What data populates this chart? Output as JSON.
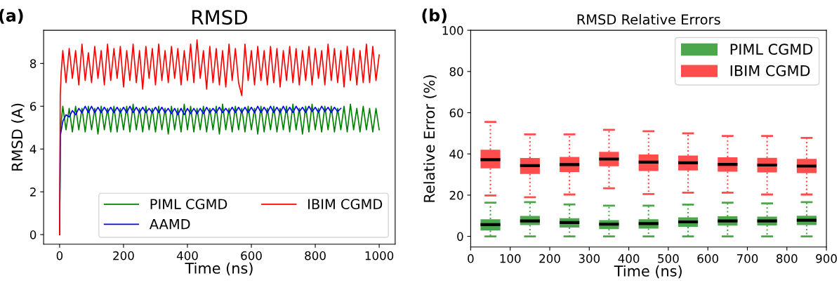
{
  "chart_data": [
    {
      "type": "line",
      "title": "RMSD",
      "xlabel": "Time (ns)",
      "ylabel": "RMSD (A)",
      "annotations": [
        "(a)"
      ],
      "xlim": [
        -50,
        1050
      ],
      "xticks": [
        0,
        200,
        400,
        600,
        800,
        1000
      ],
      "ylim": [
        -0.45,
        9.55
      ],
      "yticks": [
        0,
        2,
        4,
        6,
        8
      ],
      "legend": "lower right",
      "series": [
        {
          "name": "PIML CGMD",
          "color": "#008000",
          "x": [
            0,
            3,
            10,
            20,
            30,
            40,
            50,
            60,
            70,
            80,
            90,
            100,
            110,
            120,
            130,
            140,
            150,
            160,
            170,
            180,
            190,
            200,
            210,
            220,
            230,
            240,
            250,
            260,
            270,
            280,
            290,
            300,
            310,
            320,
            330,
            340,
            350,
            360,
            370,
            380,
            390,
            400,
            410,
            420,
            430,
            440,
            450,
            460,
            470,
            480,
            490,
            500,
            510,
            520,
            530,
            540,
            550,
            560,
            570,
            580,
            590,
            600,
            610,
            620,
            630,
            640,
            650,
            660,
            670,
            680,
            690,
            700,
            710,
            720,
            730,
            740,
            750,
            760,
            770,
            780,
            790,
            800,
            810,
            820,
            830,
            840,
            850,
            860,
            870,
            880,
            890,
            900,
            910,
            920,
            930,
            940,
            950,
            960,
            970,
            980,
            990,
            1000
          ],
          "values": [
            0,
            5.0,
            6.0,
            4.9,
            5.9,
            4.8,
            6.0,
            4.9,
            5.9,
            4.8,
            6.0,
            4.9,
            5.9,
            4.7,
            6.0,
            4.9,
            5.9,
            4.8,
            6.0,
            4.8,
            5.9,
            4.9,
            6.0,
            4.8,
            6.1,
            4.9,
            5.9,
            4.8,
            6.0,
            4.9,
            5.9,
            4.8,
            6.0,
            4.9,
            5.9,
            4.7,
            6.0,
            4.9,
            5.9,
            4.8,
            6.1,
            4.9,
            6.0,
            4.8,
            5.9,
            4.9,
            6.0,
            4.8,
            5.9,
            4.9,
            6.0,
            4.7,
            6.1,
            4.9,
            5.9,
            4.8,
            6.0,
            4.9,
            5.9,
            4.8,
            6.0,
            4.9,
            5.9,
            4.7,
            6.0,
            4.8,
            5.9,
            4.9,
            6.0,
            4.8,
            5.9,
            4.9,
            6.0,
            4.8,
            6.1,
            4.9,
            5.9,
            4.7,
            6.0,
            4.8,
            6.1,
            4.9,
            5.9,
            4.8,
            6.0,
            4.9,
            6.0,
            4.8,
            5.9,
            4.9,
            6.0,
            4.8,
            6.1,
            4.9,
            5.9,
            4.8,
            6.0,
            4.9,
            5.9,
            4.8,
            5.9,
            4.9
          ]
        },
        {
          "name": "AAMD",
          "color": "#0000ff",
          "x": [
            0,
            2,
            10,
            20,
            30,
            40,
            50,
            60,
            70,
            80,
            90,
            100,
            110,
            120,
            130,
            140,
            150,
            160,
            170,
            180,
            190,
            200,
            210,
            220,
            230,
            240,
            250,
            260,
            270,
            280,
            290,
            300,
            310,
            320,
            330,
            340,
            350,
            360,
            370,
            380,
            390,
            400,
            410,
            420,
            430,
            440,
            450,
            460,
            470,
            480,
            490,
            500,
            510,
            520,
            530,
            540,
            550,
            560,
            570,
            580,
            590,
            600,
            610,
            620,
            630,
            640,
            650,
            660,
            670,
            680,
            690,
            700,
            710,
            720,
            730,
            740,
            750,
            760,
            770,
            780,
            790,
            800,
            810,
            820,
            830,
            840,
            850,
            860,
            870,
            880
          ],
          "values": [
            0,
            4.6,
            5.3,
            5.6,
            5.5,
            5.8,
            5.6,
            5.9,
            5.7,
            6.0,
            5.7,
            6.0,
            5.7,
            5.95,
            5.7,
            5.95,
            5.7,
            5.95,
            5.7,
            5.95,
            5.7,
            5.95,
            5.7,
            6.0,
            5.7,
            5.95,
            5.7,
            5.95,
            5.7,
            5.9,
            5.7,
            5.95,
            5.7,
            5.95,
            5.7,
            5.9,
            5.65,
            5.9,
            5.6,
            5.9,
            5.6,
            5.9,
            5.65,
            5.9,
            5.65,
            5.9,
            5.65,
            5.95,
            5.7,
            5.9,
            5.7,
            5.95,
            5.7,
            5.9,
            5.7,
            5.95,
            5.7,
            5.95,
            5.7,
            5.95,
            5.7,
            5.95,
            5.7,
            6.0,
            5.7,
            5.95,
            5.7,
            6.0,
            5.7,
            5.95,
            5.7,
            6.0,
            5.7,
            5.95,
            5.7,
            6.0,
            5.75,
            5.95,
            5.7,
            6.0,
            5.75,
            5.95,
            5.7,
            6.0,
            5.75,
            5.95,
            5.7,
            5.95,
            5.75,
            5.9
          ]
        },
        {
          "name": "IBIM CGMD",
          "color": "#ff0000",
          "x": [
            0,
            2,
            5,
            10,
            20,
            30,
            40,
            50,
            60,
            70,
            80,
            90,
            100,
            110,
            120,
            130,
            140,
            150,
            160,
            170,
            180,
            190,
            200,
            210,
            220,
            230,
            240,
            250,
            260,
            270,
            280,
            290,
            300,
            310,
            320,
            330,
            340,
            350,
            360,
            370,
            380,
            390,
            400,
            410,
            420,
            430,
            440,
            450,
            460,
            470,
            480,
            490,
            500,
            510,
            520,
            530,
            540,
            550,
            560,
            570,
            580,
            590,
            600,
            610,
            620,
            630,
            640,
            650,
            660,
            670,
            680,
            690,
            700,
            710,
            720,
            730,
            740,
            750,
            760,
            770,
            780,
            790,
            800,
            810,
            820,
            830,
            840,
            850,
            860,
            870,
            880,
            890,
            900,
            910,
            920,
            930,
            940,
            950,
            960,
            970,
            980,
            990,
            1000
          ],
          "values": [
            0,
            6.5,
            7.6,
            8.6,
            7.1,
            8.7,
            7.3,
            8.6,
            7.0,
            8.9,
            7.2,
            8.5,
            7.1,
            8.8,
            7.3,
            8.6,
            7.0,
            8.9,
            7.2,
            8.7,
            7.3,
            8.8,
            6.9,
            8.6,
            7.2,
            8.9,
            7.1,
            8.6,
            6.8,
            8.8,
            7.3,
            8.7,
            7.0,
            8.9,
            7.2,
            8.6,
            7.1,
            8.8,
            7.3,
            8.7,
            7.0,
            8.6,
            7.2,
            8.9,
            7.1,
            9.1,
            7.3,
            8.6,
            6.8,
            8.8,
            7.1,
            8.7,
            7.0,
            8.6,
            6.9,
            8.9,
            7.2,
            8.7,
            7.1,
            6.5,
            8.9,
            7.2,
            8.6,
            7.0,
            8.8,
            7.2,
            8.6,
            7.0,
            8.8,
            7.1,
            8.7,
            6.9,
            8.6,
            7.2,
            8.8,
            7.1,
            8.7,
            7.0,
            8.6,
            7.2,
            8.8,
            7.0,
            8.7,
            7.3,
            8.6,
            7.0,
            8.9,
            7.2,
            8.7,
            7.1,
            8.6,
            6.9,
            8.8,
            7.2,
            8.7,
            7.0,
            8.6,
            7.1,
            8.9,
            7.1,
            8.8,
            7.2,
            8.4
          ]
        }
      ]
    },
    {
      "type": "box",
      "title": "RMSD Relative Errors",
      "xlabel": "Time (ns)",
      "ylabel": "Relative Error (%)",
      "annotations": [
        "(b)"
      ],
      "x": [
        50,
        150,
        250,
        350,
        450,
        550,
        650,
        750,
        850
      ],
      "xlim": [
        0,
        900
      ],
      "xticks": [
        0,
        100,
        200,
        300,
        400,
        500,
        600,
        700,
        800,
        900
      ],
      "ylim": [
        -5.2,
        100
      ],
      "yticks": [
        0,
        20,
        40,
        60,
        80,
        100
      ],
      "legend": "top right",
      "line_style": "dotted",
      "series": [
        {
          "name": "PIML CGMD",
          "color": "#4ca64c",
          "boxes": [
            {
              "low": 0,
              "q1": 2.8,
              "median": 5.7,
              "q3": 8.3,
              "high": 16.3
            },
            {
              "low": 0,
              "q1": 5.5,
              "median": 7.5,
              "q3": 9.9,
              "high": 16.6
            },
            {
              "low": 0,
              "q1": 4.3,
              "median": 6.7,
              "q3": 8.8,
              "high": 15.5
            },
            {
              "low": 0,
              "q1": 3.5,
              "median": 5.9,
              "q3": 7.9,
              "high": 14.9
            },
            {
              "low": 0,
              "q1": 3.8,
              "median": 6.2,
              "q3": 8.3,
              "high": 14.9
            },
            {
              "low": 0,
              "q1": 4.6,
              "median": 7.0,
              "q3": 9.2,
              "high": 15.4
            },
            {
              "low": 0,
              "q1": 5.2,
              "median": 7.5,
              "q3": 9.7,
              "high": 16.3
            },
            {
              "low": 0,
              "q1": 5.3,
              "median": 7.5,
              "q3": 9.6,
              "high": 16.0
            },
            {
              "low": 0,
              "q1": 5.5,
              "median": 7.8,
              "q3": 10.0,
              "high": 16.6
            }
          ]
        },
        {
          "name": "IBIM CGMD",
          "color": "#ff4d4d",
          "boxes": [
            {
              "low": 19.8,
              "q1": 33.0,
              "median": 37.2,
              "q3": 42.0,
              "high": 55.5
            },
            {
              "low": 19.0,
              "q1": 30.3,
              "median": 34.3,
              "q3": 38.0,
              "high": 49.5
            },
            {
              "low": 20.3,
              "q1": 31.2,
              "median": 34.8,
              "q3": 38.5,
              "high": 49.5
            },
            {
              "low": 23.3,
              "q1": 34.0,
              "median": 37.5,
              "q3": 41.0,
              "high": 51.7
            },
            {
              "low": 20.5,
              "q1": 31.7,
              "median": 36.0,
              "q3": 39.7,
              "high": 51.0
            },
            {
              "low": 21.2,
              "q1": 32.0,
              "median": 35.7,
              "q3": 39.2,
              "high": 50.0
            },
            {
              "low": 21.2,
              "q1": 31.4,
              "median": 34.9,
              "q3": 38.4,
              "high": 48.7
            },
            {
              "low": 20.3,
              "q1": 31.0,
              "median": 34.6,
              "q3": 38.1,
              "high": 48.7
            },
            {
              "low": 20.3,
              "q1": 30.7,
              "median": 34.1,
              "q3": 37.6,
              "high": 47.8
            }
          ]
        }
      ]
    }
  ]
}
